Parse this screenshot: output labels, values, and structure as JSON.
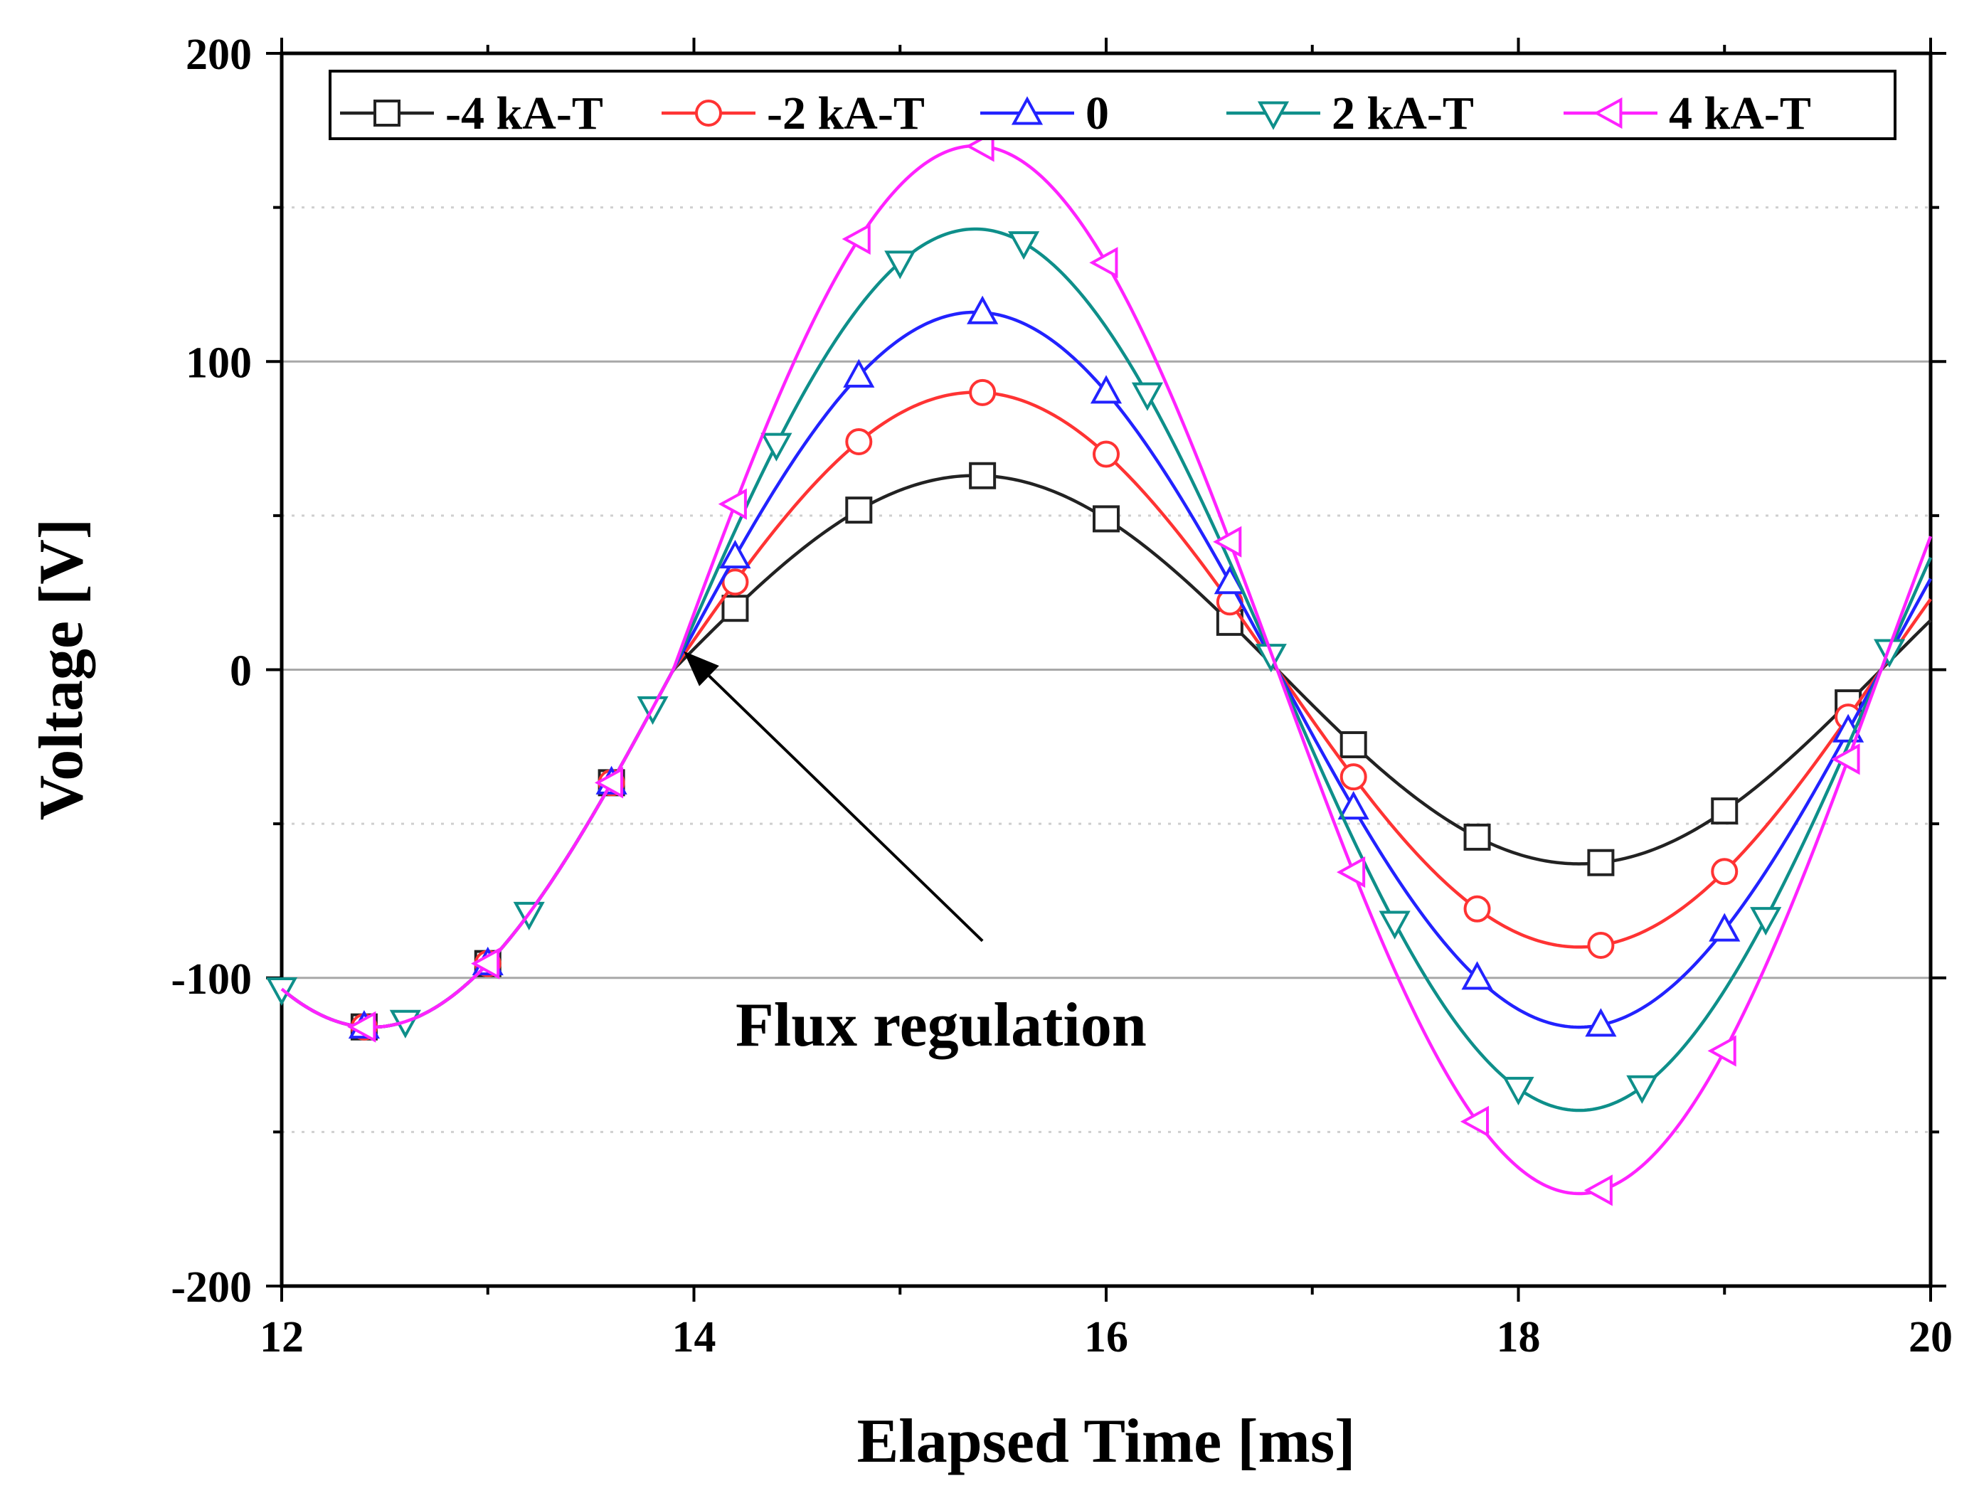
{
  "chart_data": {
    "type": "line",
    "title": "",
    "xlabel": "Elapsed Time [ms]",
    "ylabel": "Voltage [V]",
    "xlim": [
      12,
      20
    ],
    "ylim": [
      -200,
      200
    ],
    "xticks": [
      12,
      14,
      16,
      18,
      20
    ],
    "xtick_labels": [
      "12",
      "14",
      "16",
      "18",
      "20"
    ],
    "yticks": [
      -200,
      -100,
      0,
      100,
      200
    ],
    "ytick_labels": [
      "-200",
      "-100",
      "0",
      "100",
      "200"
    ],
    "major_gridlines_y": [
      -100,
      0,
      100
    ],
    "minor_gridlines_y": [
      -150,
      -50,
      50,
      150
    ],
    "legend_position": "top",
    "series": [
      {
        "name": "-4 kA-T",
        "color": "#222222",
        "marker": "square",
        "amplitude": 63,
        "marker_x": [
          14.2,
          14.8,
          15.4,
          16.0,
          16.6,
          17.2,
          17.8,
          18.4,
          19.0,
          19.6
        ]
      },
      {
        "name": "-2 kA-T",
        "color": "#ff3333",
        "marker": "circle",
        "amplitude": 90,
        "marker_x": [
          14.2,
          14.8,
          15.4,
          16.0,
          16.6,
          17.2,
          17.8,
          18.4,
          19.0,
          19.6
        ]
      },
      {
        "name": "0",
        "color": "#2222ff",
        "marker": "triangle-up",
        "amplitude": 116,
        "marker_x": [
          14.2,
          14.8,
          15.4,
          16.0,
          16.6,
          17.2,
          17.8,
          18.4,
          19.0,
          19.6
        ]
      },
      {
        "name": "2 kA-T",
        "color": "#0e8f8a",
        "marker": "triangle-down",
        "amplitude": 143,
        "marker_x": [
          14.4,
          15.0,
          15.6,
          16.2,
          16.8,
          17.4,
          18.0,
          18.6,
          19.2,
          19.8
        ]
      },
      {
        "name": "4 kA-T",
        "color": "#ff22ff",
        "marker": "triangle-left",
        "amplitude": 170,
        "marker_x": [
          14.2,
          14.8,
          15.4,
          16.0,
          16.6,
          17.2,
          17.8,
          18.4,
          19.0,
          19.6
        ]
      }
    ],
    "common_segment": {
      "description_in_data": "all series coincide before 13.9 ms",
      "amplitude": 116,
      "start_x": 12.0,
      "end_x": 13.9,
      "markers_by_series": {
        "-4 kA-T": [
          12.4,
          13.0,
          13.6
        ],
        "-2 kA-T": [
          12.4,
          13.0,
          13.6
        ],
        "0": [
          12.4,
          13.0,
          13.6
        ],
        "2 kA-T": [
          12.0,
          12.6,
          13.2,
          13.8
        ],
        "4 kA-T": [
          12.4,
          13.0,
          13.6
        ]
      }
    },
    "waveform": {
      "crossing_ms": 13.9,
      "half_period_ms": 2.93,
      "reference_crossings_ms": [
        13.9,
        16.74,
        19.87
      ],
      "reference_peak_ms": 15.3,
      "reference_trough_ms": 18.3
    },
    "annotations": [
      {
        "text": "Flux regulation",
        "arrow_target": [
          13.95,
          6
        ],
        "arrow_from": [
          15.4,
          -88
        ]
      }
    ]
  }
}
